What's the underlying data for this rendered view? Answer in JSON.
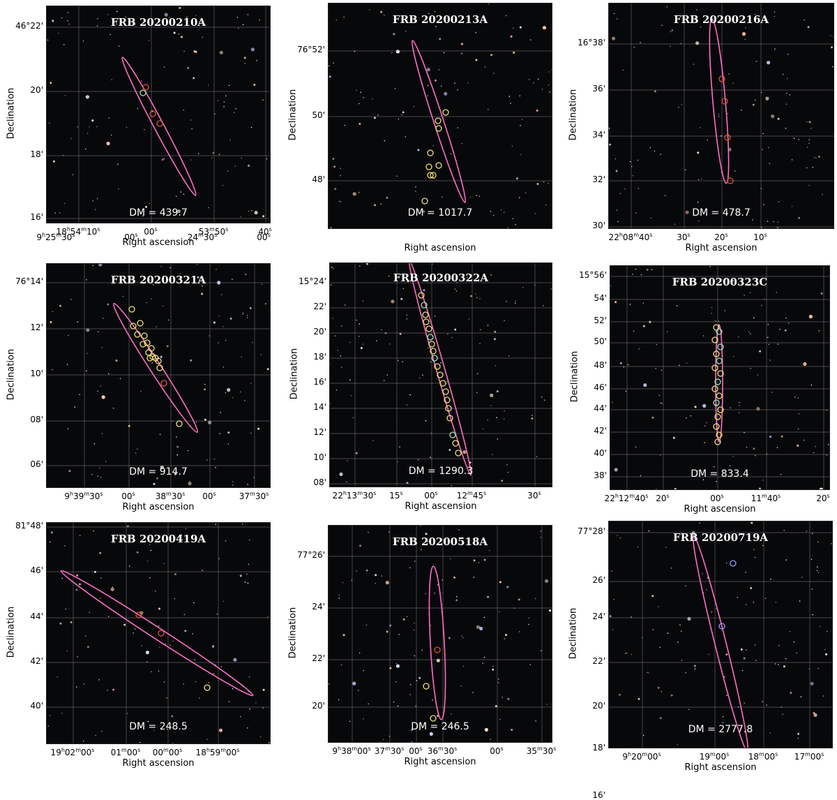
{
  "axis_labels": {
    "x": "Right ascension",
    "y": "Declination"
  },
  "colors": {
    "ellipse": "#ff6ec7",
    "circle_yellow": "#f2e27a",
    "circle_green": "#9fe3b0",
    "circle_red": "#e0523a"
  },
  "panels": [
    {
      "title": "FRB 20200210A",
      "dm": "DM = 439.7",
      "yticks": [
        "46°22'",
        "20'",
        "18'",
        "16'"
      ],
      "xticks": [
        [
          "18",
          "h",
          "54",
          "m",
          "10",
          "s"
        ],
        [
          "00",
          "s"
        ],
        [
          "53",
          "m",
          "50",
          "s"
        ],
        [
          "40",
          "s"
        ]
      ]
    },
    {
      "title": "FRB 20200213A",
      "dm": "DM = 1017.7",
      "yticks": [
        "76°52'",
        "50'",
        "48'"
      ],
      "xticks": [
        [
          "9",
          "h",
          "25",
          "m",
          "30",
          "s"
        ],
        [
          "00",
          "s"
        ],
        [
          "24",
          "m",
          "30",
          "s"
        ],
        [
          "00",
          "s"
        ]
      ]
    },
    {
      "title": "FRB 20200216A",
      "dm": "DM = 478.7",
      "yticks": [
        "16°38'",
        "36'",
        "34'",
        "32'",
        "30'"
      ],
      "xticks": [
        [
          "22",
          "h",
          "08",
          "m",
          "40",
          "s"
        ],
        [
          "30",
          "s"
        ],
        [
          "20",
          "s"
        ],
        [
          "10",
          "s"
        ]
      ]
    },
    {
      "title": "FRB 20200321A",
      "dm": "DM = 914.7",
      "yticks": [
        "76°14'",
        "12'",
        "10'",
        "08'",
        "06'"
      ],
      "xticks": [
        [
          "9",
          "h",
          "39",
          "m",
          "30",
          "s"
        ],
        [
          "00",
          "s"
        ],
        [
          "38",
          "m",
          "30",
          "s"
        ],
        [
          "00",
          "s"
        ],
        [
          "37",
          "m",
          "30",
          "s"
        ]
      ]
    },
    {
      "title": "FRB 20200322A",
      "dm": "DM = 1290.3",
      "yticks": [
        "15°24'",
        "22'",
        "20'",
        "18'",
        "16'",
        "14'",
        "12'",
        "10'",
        "08'"
      ],
      "xticks": [
        [
          "22",
          "h",
          "13",
          "m",
          "30",
          "s"
        ],
        [
          "15",
          "s"
        ],
        [
          "00",
          "s"
        ],
        [
          "12",
          "m",
          "45",
          "s"
        ],
        [
          "30",
          "s"
        ]
      ]
    },
    {
      "title": "FRB 20200323C",
      "dm": "DM = 833.4",
      "yticks": [
        "15°56'",
        "54'",
        "52'",
        "50'",
        "48'",
        "46'",
        "44'",
        "42'",
        "40'",
        "38'"
      ],
      "xticks": [
        [
          "22",
          "h",
          "12",
          "m",
          "40",
          "s"
        ],
        [
          "20",
          "s"
        ],
        [
          "00",
          "s"
        ],
        [
          "11",
          "m",
          "40",
          "s"
        ],
        [
          "20",
          "s"
        ]
      ]
    },
    {
      "title": "FRB 20200419A",
      "dm": "DM = 248.5",
      "yticks": [
        "81°48'",
        "46'",
        "44'",
        "42'",
        "40'"
      ],
      "xticks": [
        [
          "19",
          "h",
          "02",
          "m",
          "00",
          "s"
        ],
        [
          "01",
          "m",
          "00",
          "s"
        ],
        [
          "00",
          "m",
          "00",
          "s"
        ],
        [
          "18",
          "h",
          "59",
          "m",
          "00",
          "s"
        ]
      ]
    },
    {
      "title": "FRB 20200518A",
      "dm": "DM = 246.5",
      "yticks": [
        "77°26'",
        "24'",
        "22'",
        "20'"
      ],
      "xticks": [
        [
          "9",
          "h",
          "38",
          "m",
          "00",
          "s"
        ],
        [
          "37",
          "m",
          "30",
          "s"
        ],
        [
          "00",
          "s"
        ],
        [
          "36",
          "m",
          "30",
          "s"
        ],
        [
          "00",
          "s"
        ],
        [
          "35",
          "m",
          "30",
          "s"
        ]
      ]
    },
    {
      "title": "FRB 20200719A",
      "dm": "DM = 2777.8",
      "yticks": [
        "77°28'",
        "26'",
        "24'",
        "22'",
        "20'",
        "18'",
        "16'"
      ],
      "xticks": [
        [
          "9",
          "h",
          "20",
          "m",
          "00",
          "s"
        ],
        [
          "19",
          "m",
          "00",
          "s"
        ],
        [
          "18",
          "m",
          "00",
          "s"
        ],
        [
          "17",
          "m",
          "00",
          "s"
        ]
      ]
    }
  ]
}
